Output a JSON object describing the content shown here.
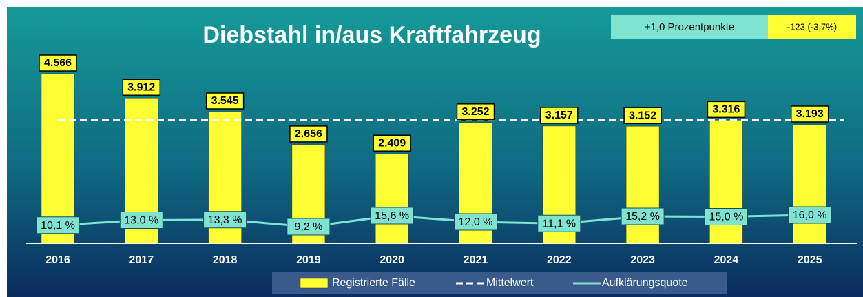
{
  "chart_data": {
    "type": "bar",
    "title": "Diebstahl in/aus Kraftfahrzeug",
    "badges": [
      "+1,0 Prozentpunkte",
      "-123 (-3,7%)"
    ],
    "categories": [
      "2016",
      "2017",
      "2018",
      "2019",
      "2020",
      "2021",
      "2022",
      "2023",
      "2024",
      "2025"
    ],
    "series": [
      {
        "name": "Registrierte Fälle",
        "color": "#ffff33",
        "values": [
          4566,
          3912,
          3545,
          2656,
          2409,
          3252,
          3157,
          3152,
          3316,
          3193
        ],
        "value_labels": [
          "4.566",
          "3.912",
          "3.545",
          "2.656",
          "2.409",
          "3.252",
          "3.157",
          "3.152",
          "3.316",
          "3.193"
        ]
      },
      {
        "name": "Aufklärungsquote",
        "color": "#7fe3d2",
        "axis": "y2",
        "values": [
          10.1,
          13.0,
          13.3,
          9.2,
          15.6,
          12.0,
          11.1,
          15.2,
          15.0,
          16.0
        ],
        "value_labels": [
          "10,1 %",
          "13,0 %",
          "13,3 %",
          "9,2 %",
          "15,6 %",
          "12,0 %",
          "11,1 %",
          "15,2 %",
          "15,0 %",
          "16,0 %"
        ]
      }
    ],
    "mean": {
      "name": "Mittelwert",
      "value": 3316,
      "color": "#ffffff"
    }
  }
}
